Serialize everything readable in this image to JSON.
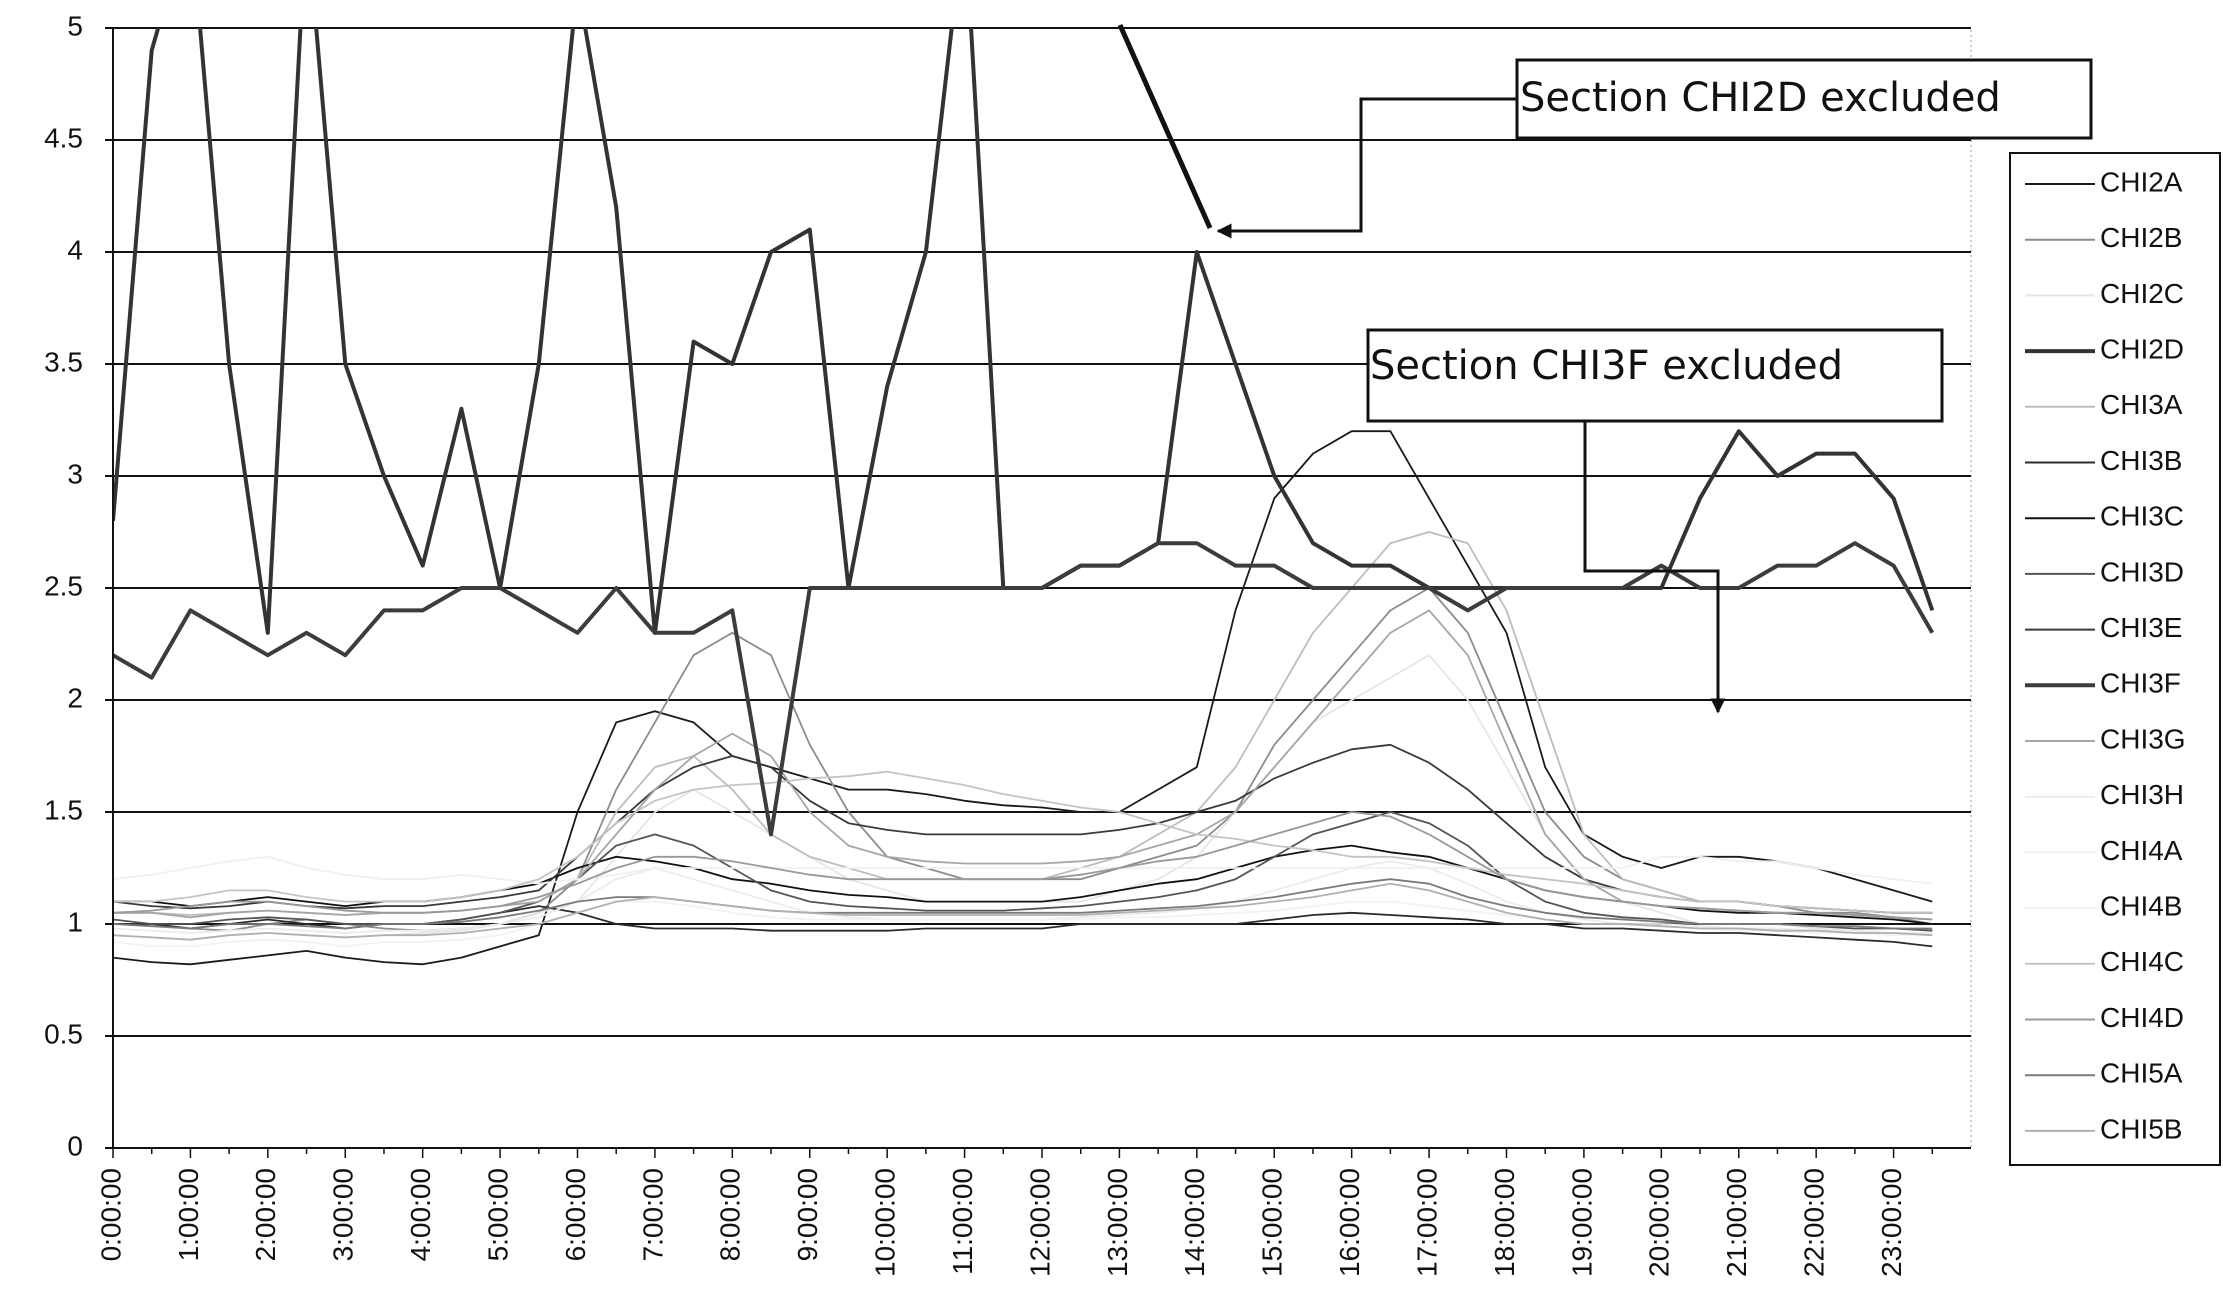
{
  "chart_data": {
    "type": "line",
    "categories": [
      "0:00:00",
      null,
      "1:00:00",
      null,
      "2:00:00",
      null,
      "3:00:00",
      null,
      "4:00:00",
      null,
      "5:00:00",
      null,
      "6:00:00",
      null,
      "7:00:00",
      null,
      "8:00:00",
      null,
      "9:00:00",
      null,
      "10:00:00",
      null,
      "11:00:00",
      null,
      "12:00:00",
      null,
      "13:00:00",
      null,
      "14:00:00",
      null,
      "15:00:00",
      null,
      "16:00:00",
      null,
      "17:00:00",
      null,
      "18:00:00",
      null,
      "19:00:00",
      null,
      "20:00:00",
      null,
      "21:00:00",
      null,
      "22:00:00",
      null,
      "23:00:00",
      null
    ],
    "ylim": [
      0,
      5
    ],
    "yticks": [
      0,
      0.5,
      1,
      1.5,
      2,
      2.5,
      3,
      3.5,
      4,
      4.5,
      5
    ],
    "grid": true,
    "legend": "right",
    "annotations": [
      "Section CHI2D excluded",
      "Section CHI3F excluded"
    ],
    "series": [
      {
        "name": "CHI2A",
        "color": "#1a1a1a",
        "values": [
          0.85,
          0.83,
          0.82,
          0.84,
          0.86,
          0.88,
          0.85,
          0.83,
          0.82,
          0.85,
          0.9,
          0.95,
          1.5,
          1.9,
          1.95,
          1.9,
          1.75,
          1.7,
          1.65,
          1.6,
          1.6,
          1.58,
          1.55,
          1.53,
          1.52,
          1.5,
          1.5,
          1.6,
          1.7,
          2.4,
          2.9,
          3.1,
          3.2,
          3.2,
          2.9,
          2.6,
          2.3,
          1.7,
          1.4,
          1.3,
          1.25,
          1.3,
          1.3,
          1.28,
          1.25,
          1.2,
          1.15,
          1.1
        ]
      },
      {
        "name": "CHI2B",
        "color": "#8c8c8c",
        "values": [
          1.0,
          1.0,
          0.98,
          0.97,
          1.0,
          1.02,
          1.0,
          0.98,
          0.97,
          0.98,
          1.0,
          1.05,
          1.2,
          1.6,
          1.9,
          2.2,
          2.3,
          2.2,
          1.8,
          1.5,
          1.3,
          1.25,
          1.2,
          1.2,
          1.2,
          1.2,
          1.25,
          1.3,
          1.35,
          1.5,
          1.8,
          2.0,
          2.2,
          2.4,
          2.5,
          2.3,
          1.9,
          1.5,
          1.3,
          1.2,
          1.15,
          1.1,
          1.1,
          1.08,
          1.05,
          1.05,
          1.03,
          1.0
        ]
      },
      {
        "name": "CHI2C",
        "color": "#e6e6e6",
        "values": [
          0.95,
          0.94,
          0.93,
          0.95,
          0.96,
          0.95,
          0.94,
          0.95,
          0.96,
          0.97,
          1.0,
          1.05,
          1.1,
          1.3,
          1.5,
          1.6,
          1.5,
          1.4,
          1.3,
          1.2,
          1.15,
          1.1,
          1.1,
          1.1,
          1.1,
          1.1,
          1.15,
          1.2,
          1.3,
          1.5,
          1.7,
          1.9,
          2.0,
          2.1,
          2.2,
          2.0,
          1.7,
          1.4,
          1.2,
          1.1,
          1.05,
          1.0,
          1.0,
          1.0,
          0.98,
          0.97,
          0.96,
          0.95
        ]
      },
      {
        "name": "CHI2D",
        "color": "#333333",
        "line_width": 4,
        "values": [
          2.8,
          4.9,
          5.5,
          3.5,
          2.3,
          5.5,
          3.5,
          3.0,
          2.6,
          3.3,
          2.5,
          3.5,
          5.2,
          4.2,
          2.3,
          3.6,
          3.5,
          4.0,
          4.1,
          2.5,
          3.4,
          4.0,
          5.5,
          2.5,
          2.5,
          2.6,
          2.6,
          2.7,
          4.0,
          3.5,
          3.0,
          2.7,
          2.6,
          2.6,
          2.5,
          2.5,
          2.5,
          2.5,
          2.5,
          2.5,
          2.5,
          2.9,
          3.2,
          3.0,
          3.1,
          3.1,
          2.9,
          2.4
        ]
      },
      {
        "name": "CHI3A",
        "color": "#bdbdbd",
        "values": [
          1.05,
          1.05,
          1.04,
          1.05,
          1.06,
          1.05,
          1.04,
          1.05,
          1.05,
          1.06,
          1.08,
          1.1,
          1.2,
          1.5,
          1.7,
          1.75,
          1.6,
          1.4,
          1.3,
          1.25,
          1.2,
          1.2,
          1.2,
          1.2,
          1.2,
          1.25,
          1.3,
          1.4,
          1.5,
          1.7,
          2.0,
          2.3,
          2.5,
          2.7,
          2.75,
          2.7,
          2.4,
          1.9,
          1.4,
          1.2,
          1.15,
          1.1,
          1.1,
          1.08,
          1.07,
          1.06,
          1.05,
          1.05
        ]
      },
      {
        "name": "CHI3B",
        "color": "#2b2b2b",
        "values": [
          1.0,
          1.0,
          0.98,
          1.0,
          1.02,
          1.0,
          0.98,
          1.0,
          1.0,
          1.02,
          1.05,
          1.08,
          1.05,
          1.0,
          0.98,
          0.98,
          0.98,
          0.97,
          0.97,
          0.97,
          0.97,
          0.98,
          0.98,
          0.98,
          0.98,
          1.0,
          1.0,
          1.0,
          1.0,
          1.0,
          1.02,
          1.04,
          1.05,
          1.04,
          1.03,
          1.02,
          1.0,
          1.0,
          0.98,
          0.98,
          0.97,
          0.96,
          0.96,
          0.95,
          0.94,
          0.93,
          0.92,
          0.9
        ]
      },
      {
        "name": "CHI3C",
        "color": "#111111",
        "values": [
          1.1,
          1.1,
          1.08,
          1.1,
          1.12,
          1.1,
          1.08,
          1.1,
          1.1,
          1.12,
          1.15,
          1.18,
          1.25,
          1.3,
          1.28,
          1.25,
          1.2,
          1.18,
          1.15,
          1.13,
          1.12,
          1.1,
          1.1,
          1.1,
          1.1,
          1.12,
          1.15,
          1.18,
          1.2,
          1.25,
          1.3,
          1.33,
          1.35,
          1.32,
          1.3,
          1.25,
          1.2,
          1.15,
          1.12,
          1.1,
          1.08,
          1.06,
          1.05,
          1.05,
          1.04,
          1.03,
          1.02,
          1.0
        ]
      },
      {
        "name": "CHI3D",
        "color": "#555555",
        "values": [
          1.02,
          1.0,
          1.0,
          1.02,
          1.03,
          1.02,
          1.0,
          1.0,
          1.0,
          1.02,
          1.05,
          1.1,
          1.2,
          1.35,
          1.4,
          1.35,
          1.25,
          1.15,
          1.1,
          1.08,
          1.07,
          1.06,
          1.06,
          1.06,
          1.07,
          1.08,
          1.1,
          1.12,
          1.15,
          1.2,
          1.3,
          1.4,
          1.45,
          1.5,
          1.45,
          1.35,
          1.2,
          1.1,
          1.05,
          1.03,
          1.02,
          1.0,
          1.0,
          1.0,
          0.99,
          0.98,
          0.98,
          0.97
        ]
      },
      {
        "name": "CHI3E",
        "color": "#3a3a3a",
        "values": [
          1.1,
          1.08,
          1.07,
          1.08,
          1.1,
          1.08,
          1.07,
          1.08,
          1.08,
          1.1,
          1.12,
          1.15,
          1.3,
          1.45,
          1.6,
          1.7,
          1.75,
          1.7,
          1.55,
          1.45,
          1.42,
          1.4,
          1.4,
          1.4,
          1.4,
          1.4,
          1.42,
          1.45,
          1.5,
          1.55,
          1.65,
          1.72,
          1.78,
          1.8,
          1.72,
          1.6,
          1.45,
          1.3,
          1.2,
          1.15,
          1.12,
          1.1,
          1.1,
          1.08,
          1.07,
          1.06,
          1.05,
          1.05
        ]
      },
      {
        "name": "CHI3F",
        "color": "#3c3c3c",
        "line_width": 4,
        "values": [
          2.2,
          2.1,
          2.4,
          2.3,
          2.2,
          2.3,
          2.2,
          2.4,
          2.4,
          2.5,
          2.5,
          2.4,
          2.3,
          2.5,
          2.3,
          2.3,
          2.4,
          1.4,
          2.5,
          2.5,
          2.5,
          2.5,
          2.5,
          2.5,
          2.5,
          2.6,
          2.6,
          2.7,
          2.7,
          2.6,
          2.6,
          2.5,
          2.5,
          2.5,
          2.5,
          2.4,
          2.5,
          2.5,
          2.5,
          2.5,
          2.6,
          2.5,
          2.5,
          2.6,
          2.6,
          2.7,
          2.6,
          2.3
        ]
      },
      {
        "name": "CHI3G",
        "color": "#a6a6a6",
        "values": [
          1.05,
          1.05,
          1.03,
          1.05,
          1.06,
          1.05,
          1.04,
          1.05,
          1.05,
          1.06,
          1.08,
          1.1,
          1.2,
          1.4,
          1.6,
          1.75,
          1.85,
          1.75,
          1.5,
          1.35,
          1.3,
          1.28,
          1.27,
          1.27,
          1.27,
          1.28,
          1.3,
          1.35,
          1.4,
          1.5,
          1.7,
          1.9,
          2.1,
          2.3,
          2.4,
          2.2,
          1.8,
          1.4,
          1.2,
          1.1,
          1.08,
          1.07,
          1.06,
          1.05,
          1.05,
          1.04,
          1.03,
          1.02
        ]
      },
      {
        "name": "CHI3H",
        "color": "#ececec",
        "values": [
          0.98,
          0.97,
          0.96,
          0.97,
          0.98,
          0.97,
          0.96,
          0.97,
          0.97,
          0.98,
          1.0,
          1.03,
          1.1,
          1.2,
          1.25,
          1.2,
          1.15,
          1.1,
          1.05,
          1.03,
          1.02,
          1.02,
          1.02,
          1.02,
          1.02,
          1.03,
          1.04,
          1.05,
          1.07,
          1.1,
          1.15,
          1.2,
          1.25,
          1.28,
          1.25,
          1.18,
          1.1,
          1.05,
          1.02,
          1.0,
          1.0,
          0.99,
          0.98,
          0.98,
          0.97,
          0.97,
          0.96,
          0.96
        ]
      },
      {
        "name": "CHI4A",
        "color": "#f0f0f0",
        "values": [
          1.2,
          1.22,
          1.25,
          1.28,
          1.3,
          1.25,
          1.22,
          1.2,
          1.2,
          1.22,
          1.2,
          1.18,
          1.2,
          1.22,
          1.25,
          1.25,
          1.25,
          1.25,
          1.25,
          1.25,
          1.25,
          1.25,
          1.25,
          1.25,
          1.25,
          1.25,
          1.25,
          1.25,
          1.25,
          1.25,
          1.25,
          1.25,
          1.25,
          1.25,
          1.25,
          1.25,
          1.25,
          1.25,
          1.25,
          1.25,
          1.3,
          1.3,
          1.28,
          1.28,
          1.25,
          1.22,
          1.2,
          1.18
        ]
      },
      {
        "name": "CHI4B",
        "color": "#f2f2f2",
        "values": [
          0.92,
          0.9,
          0.9,
          0.92,
          0.93,
          0.92,
          0.9,
          0.92,
          0.92,
          0.93,
          0.95,
          1.0,
          1.05,
          1.1,
          1.1,
          1.08,
          1.05,
          1.03,
          1.02,
          1.02,
          1.02,
          1.02,
          1.02,
          1.02,
          1.02,
          1.02,
          1.03,
          1.03,
          1.04,
          1.05,
          1.06,
          1.08,
          1.1,
          1.1,
          1.08,
          1.06,
          1.04,
          1.02,
          1.0,
          1.0,
          0.99,
          0.98,
          0.97,
          0.97,
          0.96,
          0.96,
          0.95,
          0.95
        ]
      },
      {
        "name": "CHI4C",
        "color": "#c4c4c4",
        "values": [
          1.1,
          1.1,
          1.12,
          1.15,
          1.15,
          1.12,
          1.1,
          1.1,
          1.1,
          1.12,
          1.15,
          1.2,
          1.3,
          1.45,
          1.55,
          1.6,
          1.62,
          1.63,
          1.65,
          1.66,
          1.68,
          1.65,
          1.62,
          1.58,
          1.55,
          1.52,
          1.5,
          1.45,
          1.4,
          1.38,
          1.35,
          1.33,
          1.3,
          1.3,
          1.28,
          1.25,
          1.22,
          1.2,
          1.18,
          1.15,
          1.12,
          1.1,
          1.1,
          1.08,
          1.07,
          1.06,
          1.05,
          1.05
        ]
      },
      {
        "name": "CHI4D",
        "color": "#999999",
        "values": [
          1.05,
          1.06,
          1.08,
          1.1,
          1.1,
          1.08,
          1.06,
          1.05,
          1.05,
          1.06,
          1.08,
          1.12,
          1.18,
          1.25,
          1.3,
          1.3,
          1.28,
          1.25,
          1.22,
          1.2,
          1.2,
          1.2,
          1.2,
          1.2,
          1.2,
          1.22,
          1.25,
          1.28,
          1.3,
          1.35,
          1.4,
          1.45,
          1.5,
          1.48,
          1.4,
          1.3,
          1.2,
          1.15,
          1.12,
          1.1,
          1.08,
          1.07,
          1.06,
          1.05,
          1.05,
          1.04,
          1.03,
          1.02
        ]
      },
      {
        "name": "CHI5A",
        "color": "#7a7a7a",
        "values": [
          1.0,
          0.99,
          0.98,
          1.0,
          1.0,
          0.99,
          0.98,
          1.0,
          1.0,
          1.01,
          1.03,
          1.06,
          1.1,
          1.12,
          1.12,
          1.1,
          1.08,
          1.06,
          1.05,
          1.05,
          1.05,
          1.05,
          1.05,
          1.05,
          1.05,
          1.05,
          1.06,
          1.07,
          1.08,
          1.1,
          1.12,
          1.15,
          1.18,
          1.2,
          1.18,
          1.12,
          1.08,
          1.05,
          1.03,
          1.02,
          1.01,
          1.0,
          1.0,
          1.0,
          0.99,
          0.99,
          0.98,
          0.98
        ]
      },
      {
        "name": "CHI5B",
        "color": "#b0b0b0",
        "values": [
          0.95,
          0.94,
          0.93,
          0.95,
          0.96,
          0.95,
          0.94,
          0.95,
          0.95,
          0.96,
          0.98,
          1.0,
          1.05,
          1.1,
          1.12,
          1.1,
          1.08,
          1.06,
          1.05,
          1.04,
          1.04,
          1.04,
          1.04,
          1.04,
          1.04,
          1.04,
          1.05,
          1.06,
          1.07,
          1.08,
          1.1,
          1.12,
          1.15,
          1.18,
          1.15,
          1.1,
          1.05,
          1.02,
          1.0,
          1.0,
          0.99,
          0.98,
          0.98,
          0.97,
          0.97,
          0.96,
          0.96,
          0.95
        ]
      }
    ]
  }
}
